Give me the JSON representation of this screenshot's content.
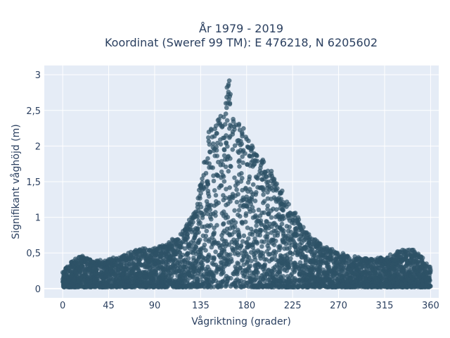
{
  "chart_data": {
    "type": "scatter",
    "title_line1": "År 1979 - 2019",
    "title_line2": "Koordinat (Sweref 99 TM): E 476218, N 6205602",
    "xlabel": "Vågriktning (grader)",
    "ylabel": "Signifikant våghöjd (m)",
    "xlim": [
      -18,
      368
    ],
    "ylim": [
      -0.13,
      3.13
    ],
    "x_ticks": [
      0,
      45,
      90,
      135,
      180,
      225,
      270,
      315,
      360
    ],
    "x_tick_labels": [
      "0",
      "45",
      "90",
      "135",
      "180",
      "225",
      "270",
      "315",
      "360"
    ],
    "y_ticks": [
      0,
      0.5,
      1,
      1.5,
      2,
      2.5,
      3
    ],
    "y_tick_labels": [
      "0",
      "0,5",
      "1",
      "1,5",
      "2",
      "2,5",
      "3"
    ],
    "grid": true,
    "legend": "none",
    "envelope": {
      "direction": [
        0,
        10,
        20,
        30,
        45,
        60,
        75,
        90,
        100,
        110,
        120,
        130,
        135,
        140,
        145,
        150,
        155,
        160,
        163,
        165,
        170,
        175,
        180,
        185,
        190,
        200,
        210,
        220,
        225,
        230,
        240,
        250,
        260,
        270,
        280,
        290,
        300,
        315,
        330,
        340,
        350,
        360
      ],
      "max_height": [
        0.25,
        0.38,
        0.45,
        0.38,
        0.4,
        0.45,
        0.55,
        0.55,
        0.6,
        0.7,
        0.85,
        1.1,
        1.55,
        2.0,
        2.3,
        2.35,
        2.5,
        2.75,
        3.0,
        2.65,
        2.4,
        2.35,
        2.1,
        2.0,
        1.85,
        1.75,
        1.5,
        1.2,
        1.1,
        1.0,
        0.75,
        0.65,
        0.55,
        0.5,
        0.45,
        0.42,
        0.4,
        0.42,
        0.52,
        0.57,
        0.45,
        0.28
      ]
    },
    "marker_color": "#2e5266",
    "plot_background": "#e5ecf6",
    "grid_color": "#ffffff"
  }
}
